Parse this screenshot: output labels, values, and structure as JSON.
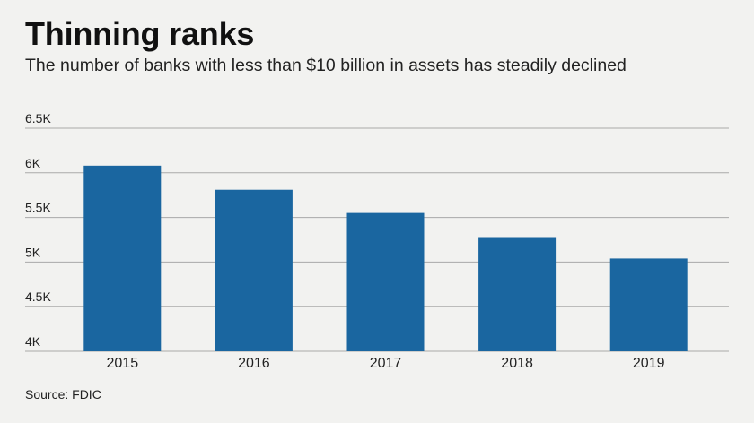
{
  "header": {
    "title": "Thinning ranks",
    "subtitle": "The number of banks with less than $10 billion in assets has steadily declined"
  },
  "footer": {
    "source": "Source: FDIC"
  },
  "colors": {
    "bar": "#1a66a0",
    "grid": "#a9a9a9",
    "background": "#f2f2f0"
  },
  "chart_data": {
    "type": "bar",
    "title": "Thinning ranks",
    "subtitle": "The number of banks with less than $10 billion in assets has steadily declined",
    "categories": [
      "2015",
      "2016",
      "2017",
      "2018",
      "2019"
    ],
    "values": [
      6080,
      5810,
      5550,
      5270,
      5040
    ],
    "ylim": [
      4000,
      6500
    ],
    "yticks": [
      4000,
      4500,
      5000,
      5500,
      6000,
      6500
    ],
    "ytick_labels": [
      "4K",
      "4.5K",
      "5K",
      "5.5K",
      "6K",
      "6.5K"
    ],
    "xlabel": "",
    "ylabel": "",
    "grid": true,
    "legend": "none"
  }
}
